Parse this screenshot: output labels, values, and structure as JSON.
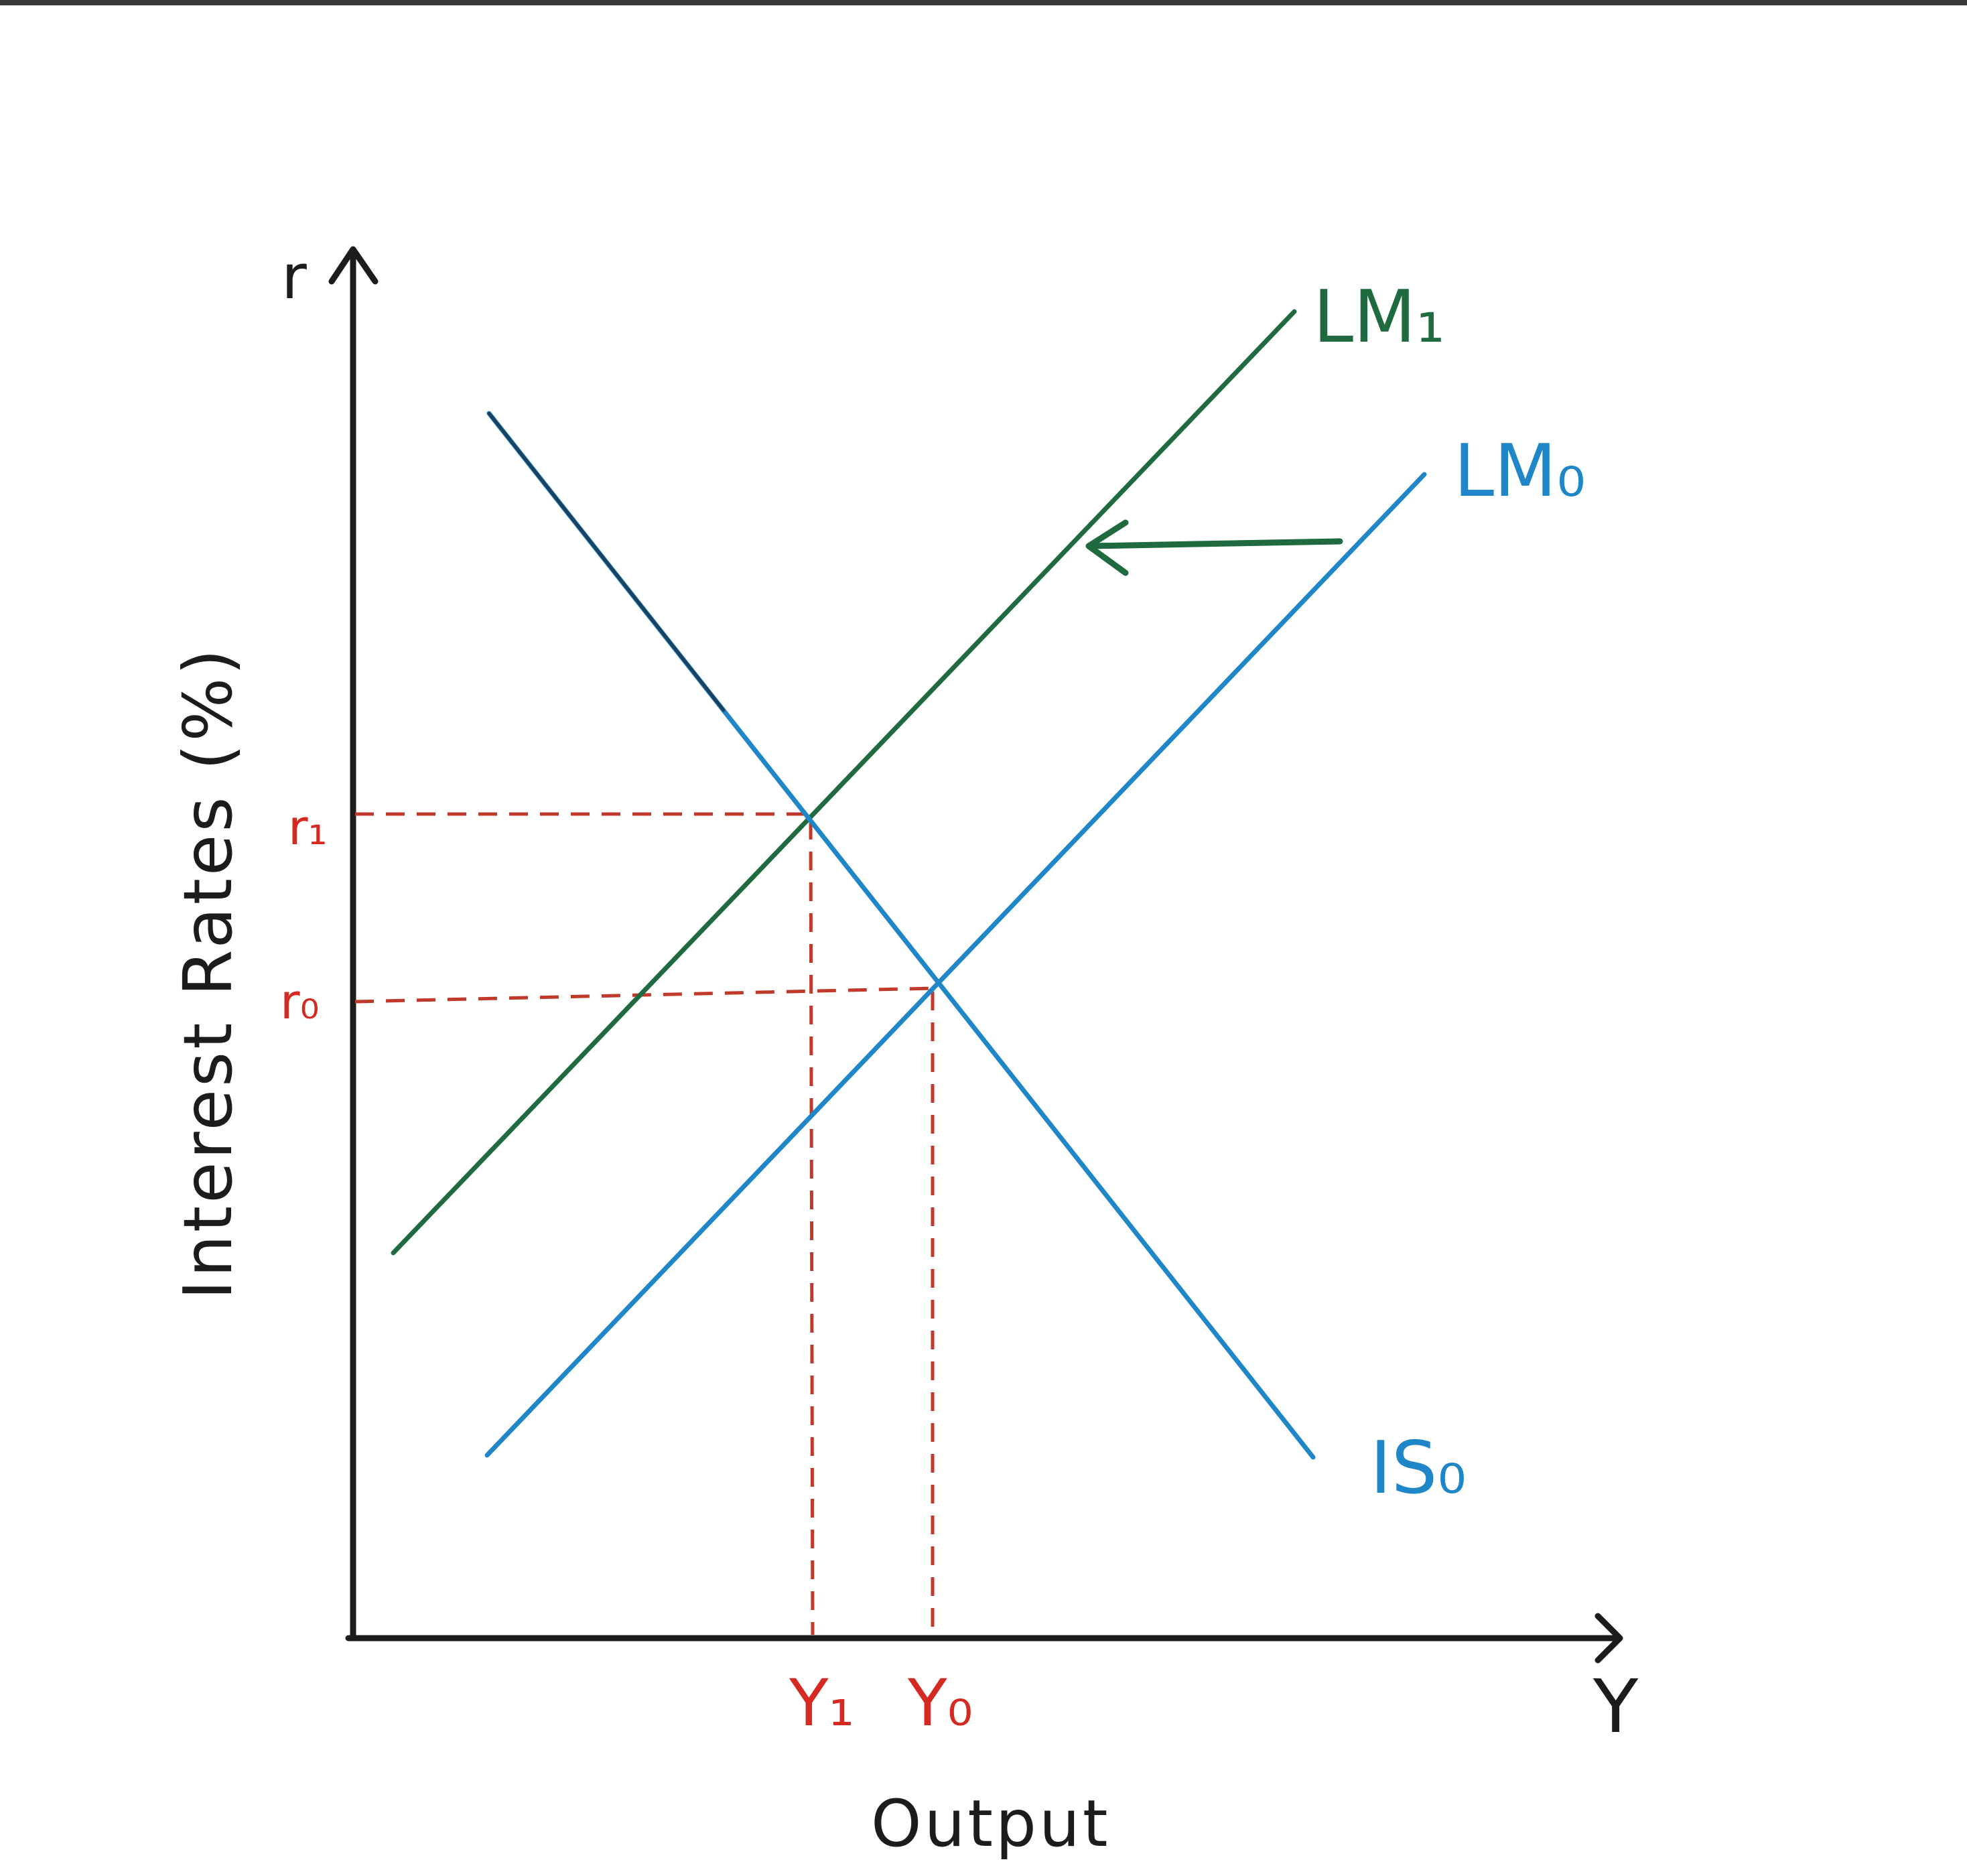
{
  "diagram": {
    "axis_y_symbol": "r",
    "axis_x_symbol": "Y",
    "y_axis_title": "Interest Rates (%)",
    "x_axis_title": "Output",
    "curves": {
      "lm1": "LM₁",
      "lm0": "LM₀",
      "is0": "IS₀"
    },
    "rates": {
      "r1": "r₁",
      "r0": "r₀"
    },
    "outputs": {
      "y1": "Y₁",
      "y0": "Y₀"
    },
    "colors": {
      "axis": "#1c1c1c",
      "lm1": "#1f6b3f",
      "lm0": "#1f86c8",
      "is0": "#1f86c8",
      "guides": "#c0392b",
      "level_labels": "#d42a22"
    },
    "annotations": {
      "shift_arrow": "left"
    }
  }
}
